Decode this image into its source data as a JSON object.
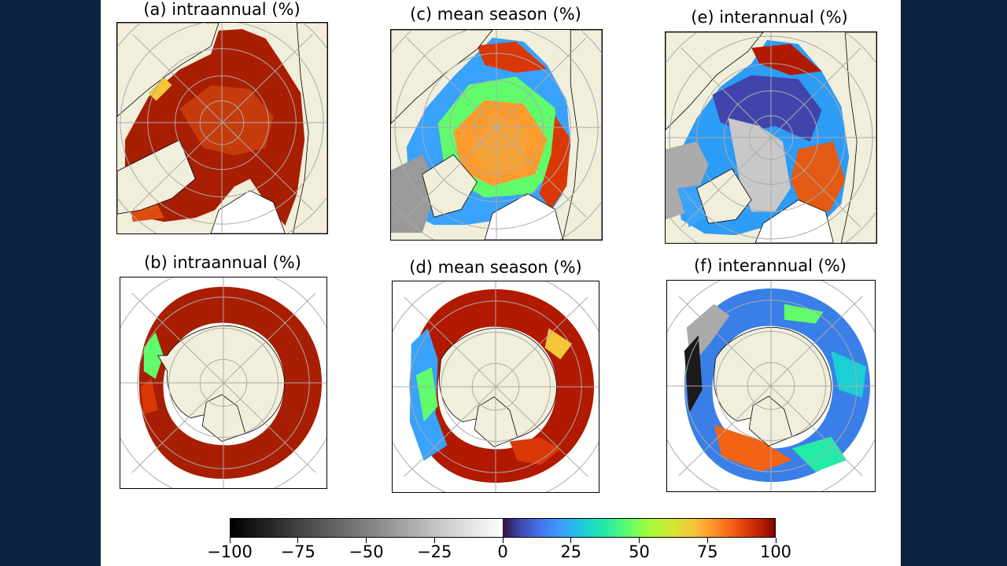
{
  "panels": {
    "a": {
      "title": "(a) intraannual (%)"
    },
    "b": {
      "title": "(b) intraannual (%)"
    },
    "c": {
      "title": "(c) mean season (%)"
    },
    "d": {
      "title": "(d) mean season (%)"
    },
    "e": {
      "title": "(e) interannual (%)"
    },
    "f": {
      "title": "(f) interannual (%)"
    }
  },
  "colorbar": {
    "ticks": [
      "−100",
      "−75",
      "−50",
      "−25",
      "0",
      "25",
      "50",
      "75",
      "100"
    ],
    "range": [
      -100,
      100
    ],
    "colormap_negative": "greys (black to white)",
    "colormap_positive": "turbo (dark blue to dark red)"
  },
  "colors": {
    "background": "#0b2540",
    "land": "#f1eedb",
    "figure": "#ffffff",
    "grid": "#aaaaaa"
  }
}
